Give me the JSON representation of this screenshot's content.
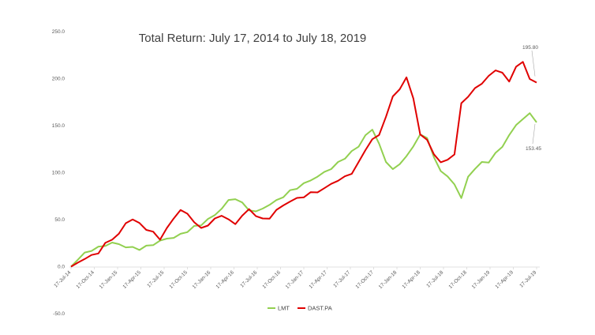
{
  "chart_data": {
    "type": "line",
    "title": "Total Return: July 17, 2014 to July 18, 2019",
    "xlabel": "",
    "ylabel": "",
    "ylim": [
      -50,
      250
    ],
    "y_ticks": [
      "-50.0",
      "0.0",
      "50.0",
      "100.0",
      "150.0",
      "200.0",
      "250.0"
    ],
    "x_tick_labels": [
      "17-Jul-14",
      "17-Oct-14",
      "17-Jan-15",
      "17-Apr-15",
      "17-Jul-15",
      "17-Oct-15",
      "17-Jan-16",
      "17-Apr-16",
      "17-Jul-16",
      "17-Oct-16",
      "17-Jan-17",
      "17-Apr-17",
      "17-Jul-17",
      "17-Oct-17",
      "17-Jan-18",
      "17-Apr-18",
      "17-Jul-18",
      "17-Oct-18",
      "17-Jan-19",
      "17-Apr-19",
      "17-Jul-19"
    ],
    "grid": false,
    "legend_position": "bottom-center",
    "colors": {
      "LMT": "#92d050",
      "DAST.PA": "#e00000"
    },
    "series": [
      {
        "name": "LMT",
        "values": [
          0,
          8,
          14,
          18,
          20,
          23,
          25,
          24,
          21,
          20,
          19,
          21,
          24,
          27,
          30,
          31,
          34,
          38,
          42,
          45,
          50,
          55,
          62,
          70,
          73,
          67,
          61,
          58,
          62,
          66,
          70,
          75,
          80,
          84,
          88,
          92,
          96,
          100,
          105,
          110,
          116,
          122,
          128,
          140,
          145,
          132,
          110,
          105,
          108,
          118,
          128,
          140,
          138,
          115,
          103,
          95,
          88,
          73,
          95,
          105,
          110,
          112,
          120,
          128,
          140,
          150,
          158,
          162,
          153.45
        ]
      },
      {
        "name": "DAST.PA",
        "values": [
          0,
          5,
          8,
          12,
          15,
          24,
          30,
          34,
          47,
          50,
          46,
          40,
          36,
          30,
          40,
          52,
          60,
          56,
          48,
          40,
          45,
          50,
          55,
          50,
          45,
          55,
          60,
          55,
          50,
          52,
          60,
          65,
          70,
          72,
          75,
          78,
          80,
          83,
          88,
          92,
          95,
          100,
          110,
          125,
          135,
          140,
          160,
          180,
          190,
          200,
          180,
          140,
          135,
          120,
          110,
          115,
          118,
          175,
          180,
          190,
          195,
          202,
          210,
          205,
          198,
          212,
          218,
          200,
          195.8
        ]
      }
    ],
    "annotations": [
      "195.80",
      "153.45"
    ]
  }
}
